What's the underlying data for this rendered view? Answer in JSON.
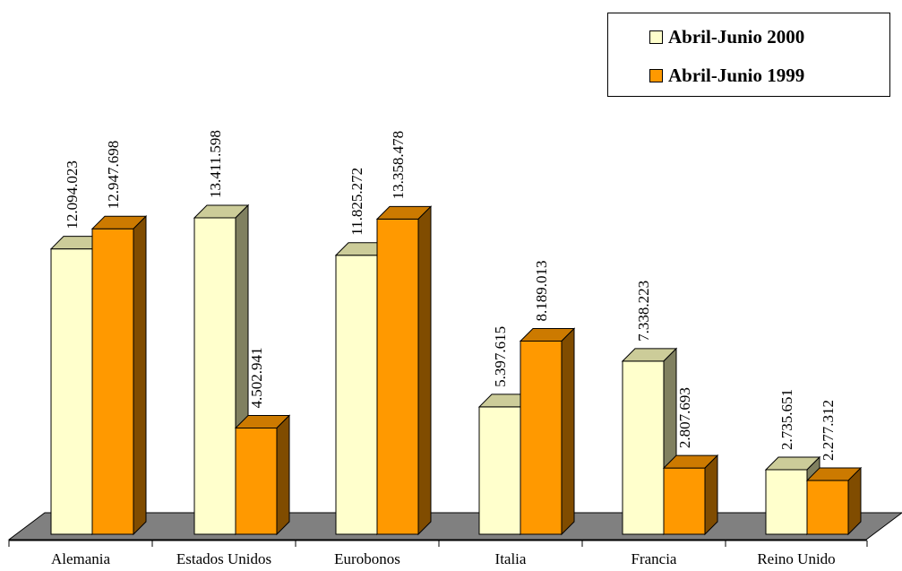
{
  "chart_data": {
    "type": "bar",
    "style": "3d-clustered-column",
    "categories": [
      "Alemania",
      "Estados Unidos",
      "Eurobonos",
      "Italia",
      "Francia",
      "Reino Unido"
    ],
    "series": [
      {
        "name": "Abril-Junio 2000",
        "values": [
          12094023,
          13411598,
          11825272,
          5397615,
          7338223,
          2735651
        ],
        "data_labels": [
          "12.094.023",
          "13.411.598",
          "11.825.272",
          "5.397.615",
          "7.338.223",
          "2.735.651"
        ],
        "color": "#FFFFCC",
        "side_color": "#808060",
        "top_color": "#CCCC99"
      },
      {
        "name": "Abril-Junio 1999",
        "values": [
          12947698,
          4502941,
          13358478,
          8189013,
          2807693,
          2277312
        ],
        "data_labels": [
          "12.947.698",
          "4.502.941",
          "13.358.478",
          "8.189.013",
          "2.807.693",
          "2.277.312"
        ],
        "color": "#FF9900",
        "side_color": "#804C00",
        "top_color": "#CC7A00"
      }
    ],
    "ylim": [
      0,
      14000000
    ],
    "grid": false,
    "legend_position": "top-right",
    "floor_color": "#808080"
  }
}
